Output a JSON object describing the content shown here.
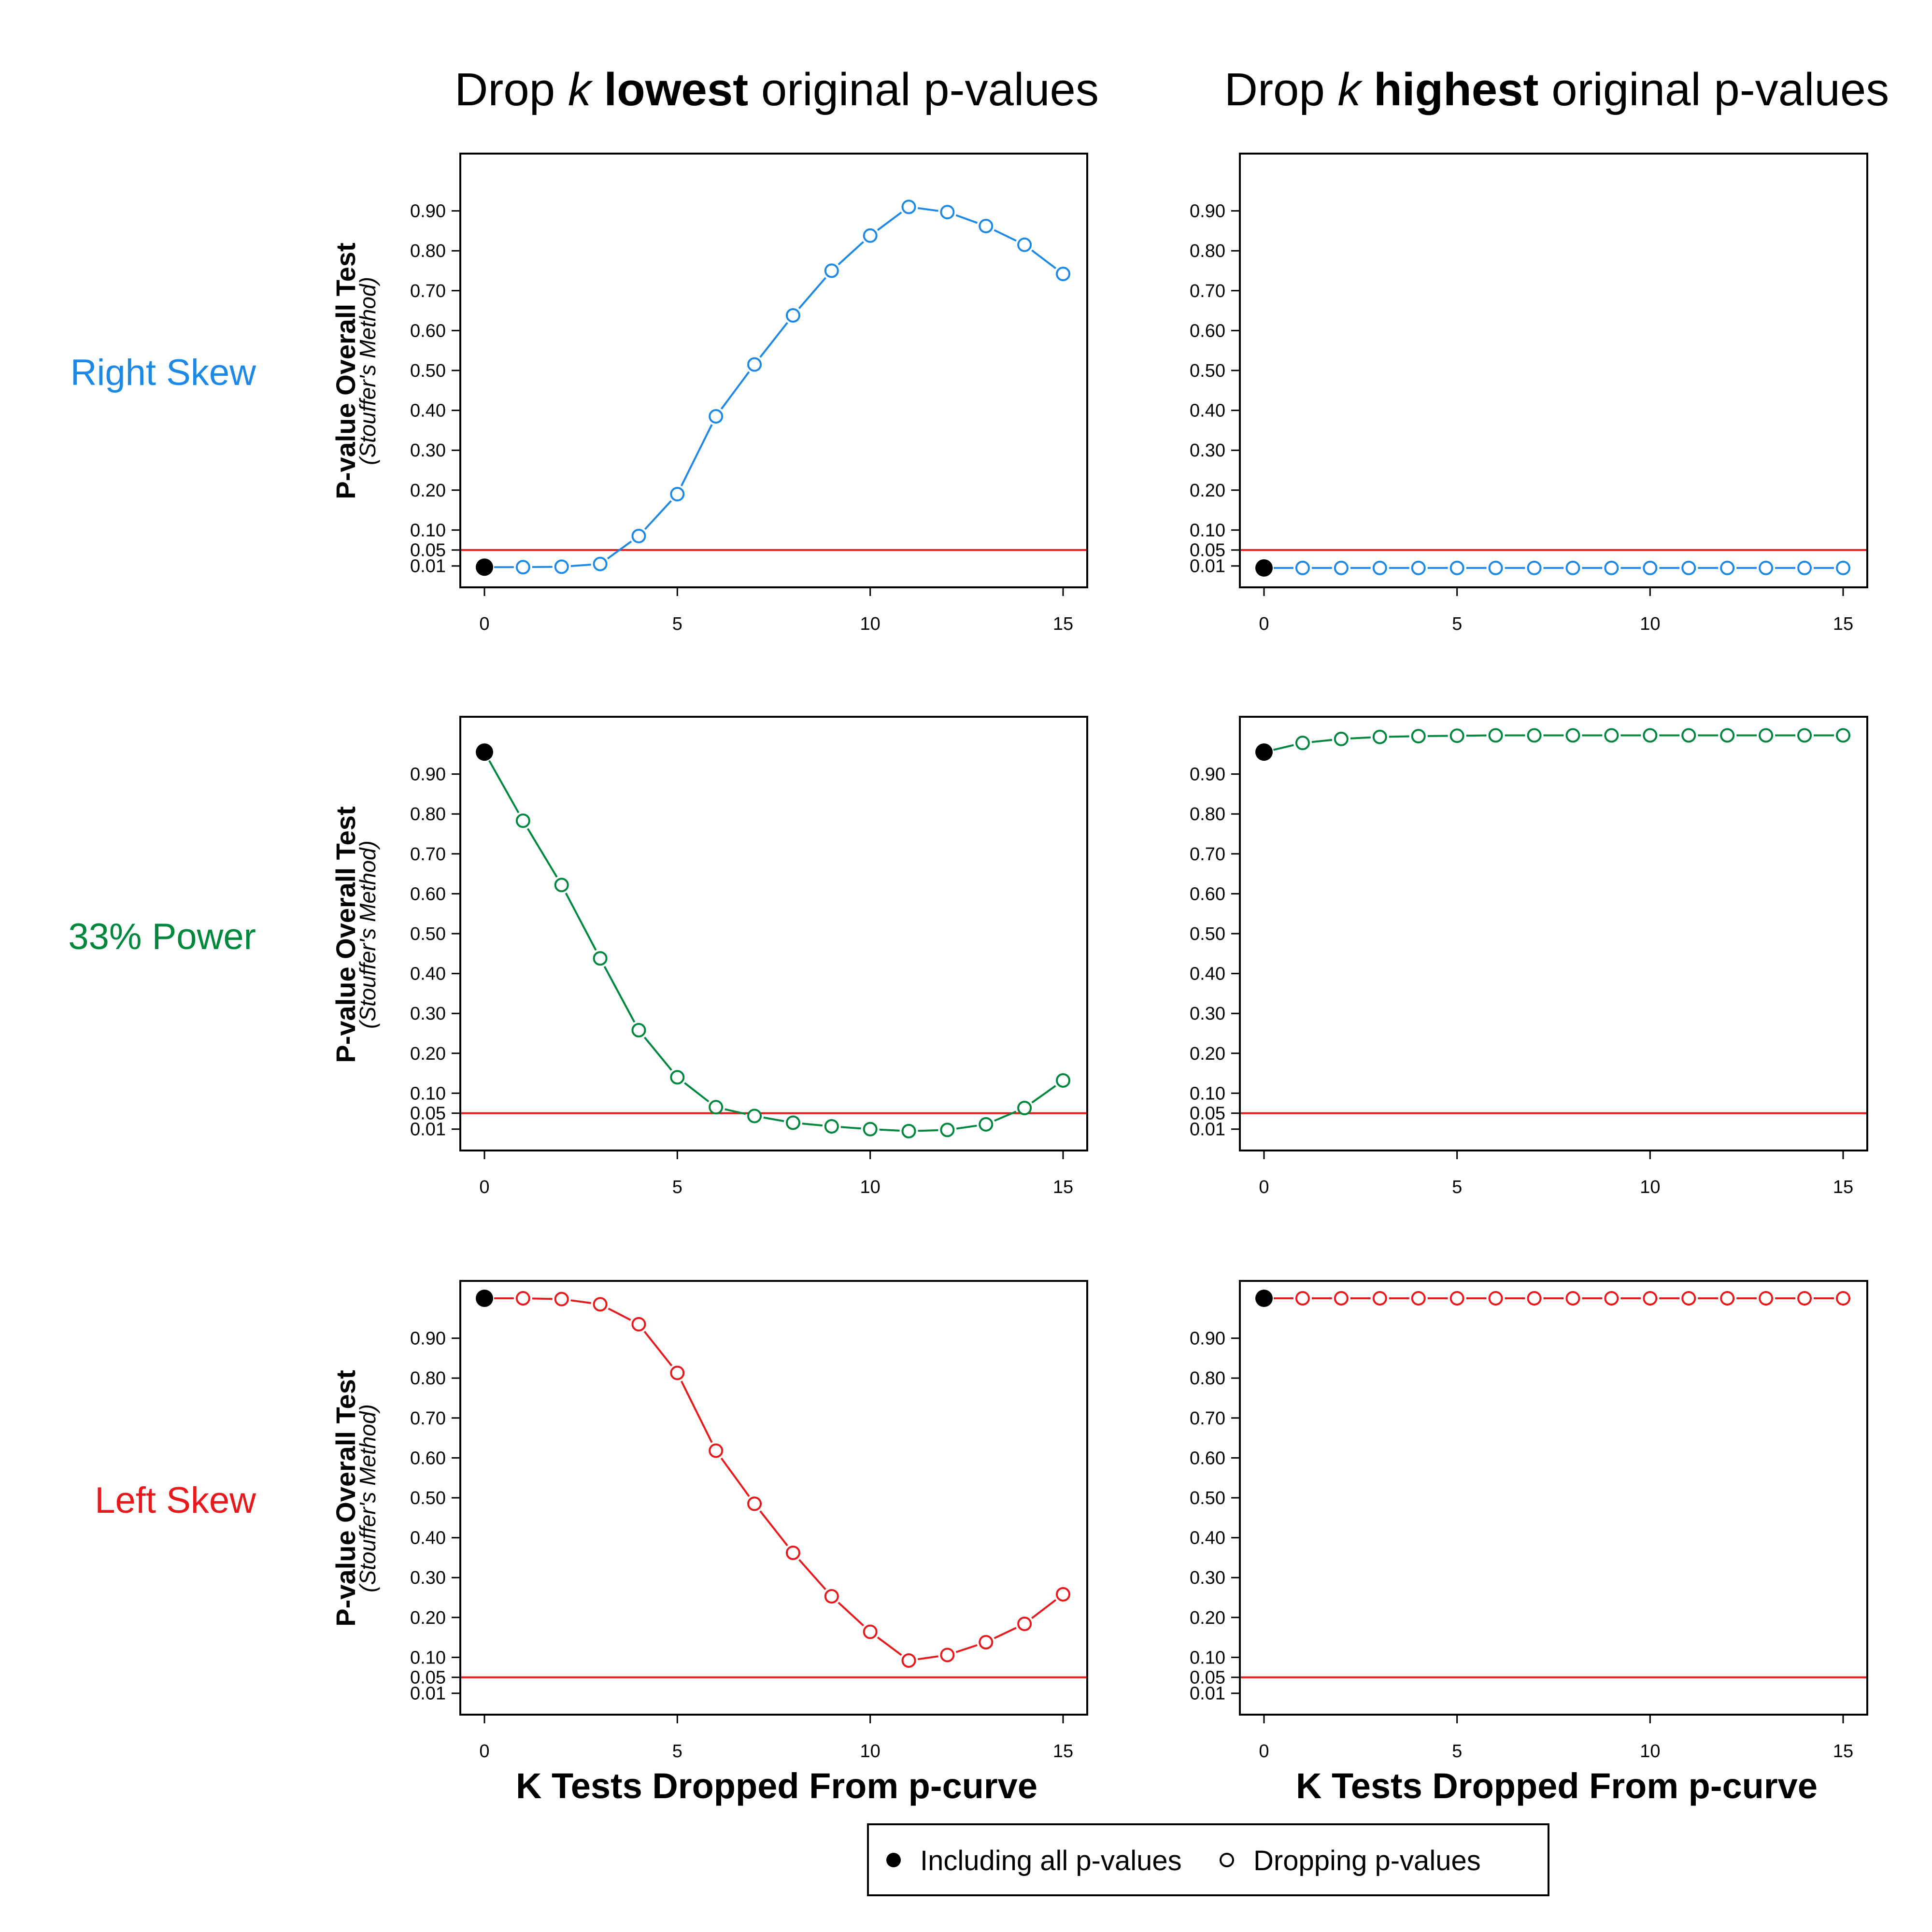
{
  "columns": [
    {
      "prefix": "Drop ",
      "k": "k",
      "bold": "lowest",
      "suffix": " original p-values"
    },
    {
      "prefix": "Drop ",
      "k": "k",
      "bold": "highest",
      "suffix": " original p-values"
    }
  ],
  "rows": [
    {
      "label": "Right Skew",
      "color": "#1E88E5"
    },
    {
      "label": "33% Power",
      "color": "#00873E"
    },
    {
      "label": "Left Skew",
      "color": "#E8191C"
    }
  ],
  "ylabel": "P-value Overall Test",
  "ylabel_sub": "(Stouffer's Method)",
  "xlabel": "K Tests Dropped From p-curve",
  "threshold": {
    "value": 0.05,
    "color": "#E8191C"
  },
  "legend": {
    "filled": "Including all p-values",
    "open": "Dropping p-values"
  },
  "chart_data": [
    {
      "type": "line",
      "row": "Right Skew",
      "column": "lowest",
      "x": [
        0,
        1,
        2,
        3,
        4,
        5,
        6,
        7,
        8,
        9,
        10,
        11,
        12,
        13,
        14,
        15
      ],
      "values": [
        0.007,
        0.007,
        0.008,
        0.015,
        0.085,
        0.19,
        0.385,
        0.515,
        0.638,
        0.75,
        0.838,
        0.91,
        0.897,
        0.862,
        0.815,
        0.742
      ],
      "xlim": [
        0,
        15
      ],
      "ylim": [
        0,
        1
      ],
      "xticks": [
        "0",
        "5",
        "10",
        "15"
      ],
      "yticks": [
        "0.01",
        "0.05",
        "0.10",
        "0.20",
        "0.30",
        "0.40",
        "0.50",
        "0.60",
        "0.70",
        "0.80",
        "0.90"
      ]
    },
    {
      "type": "line",
      "row": "Right Skew",
      "column": "highest",
      "x": [
        0,
        1,
        2,
        3,
        4,
        5,
        6,
        7,
        8,
        9,
        10,
        11,
        12,
        13,
        14,
        15
      ],
      "values": [
        0.005,
        0.005,
        0.005,
        0.005,
        0.005,
        0.005,
        0.005,
        0.005,
        0.005,
        0.005,
        0.005,
        0.005,
        0.005,
        0.005,
        0.005,
        0.005
      ],
      "xlim": [
        0,
        15
      ],
      "ylim": [
        0,
        1
      ],
      "xticks": [
        "0",
        "5",
        "10",
        "15"
      ],
      "yticks": [
        "0.01",
        "0.05",
        "0.10",
        "0.20",
        "0.30",
        "0.40",
        "0.50",
        "0.60",
        "0.70",
        "0.80",
        "0.90"
      ]
    },
    {
      "type": "line",
      "row": "33% Power",
      "column": "lowest",
      "x": [
        0,
        1,
        2,
        3,
        4,
        5,
        6,
        7,
        8,
        9,
        10,
        11,
        12,
        13,
        14,
        15
      ],
      "values": [
        0.955,
        0.783,
        0.622,
        0.438,
        0.258,
        0.14,
        0.065,
        0.043,
        0.026,
        0.017,
        0.01,
        0.005,
        0.008,
        0.022,
        0.063,
        0.132
      ],
      "xlim": [
        0,
        15
      ],
      "ylim": [
        0,
        1
      ],
      "xticks": [
        "0",
        "5",
        "10",
        "15"
      ],
      "yticks": [
        "0.01",
        "0.05",
        "0.10",
        "0.20",
        "0.30",
        "0.40",
        "0.50",
        "0.60",
        "0.70",
        "0.80",
        "0.90"
      ]
    },
    {
      "type": "line",
      "row": "33% Power",
      "column": "highest",
      "x": [
        0,
        1,
        2,
        3,
        4,
        5,
        6,
        7,
        8,
        9,
        10,
        11,
        12,
        13,
        14,
        15
      ],
      "values": [
        0.955,
        0.978,
        0.988,
        0.993,
        0.995,
        0.996,
        0.997,
        0.997,
        0.997,
        0.997,
        0.997,
        0.997,
        0.997,
        0.997,
        0.997,
        0.997
      ],
      "xlim": [
        0,
        15
      ],
      "ylim": [
        0,
        1
      ],
      "xticks": [
        "0",
        "5",
        "10",
        "15"
      ],
      "yticks": [
        "0.01",
        "0.05",
        "0.10",
        "0.20",
        "0.30",
        "0.40",
        "0.50",
        "0.60",
        "0.70",
        "0.80",
        "0.90"
      ]
    },
    {
      "type": "line",
      "row": "Left Skew",
      "column": "lowest",
      "x": [
        0,
        1,
        2,
        3,
        4,
        5,
        6,
        7,
        8,
        9,
        10,
        11,
        12,
        13,
        14,
        15
      ],
      "values": [
        1.0,
        1.0,
        0.998,
        0.985,
        0.935,
        0.813,
        0.618,
        0.485,
        0.362,
        0.253,
        0.164,
        0.092,
        0.106,
        0.138,
        0.184,
        0.258
      ],
      "xlim": [
        0,
        15
      ],
      "ylim": [
        0,
        1
      ],
      "xticks": [
        "0",
        "5",
        "10",
        "15"
      ],
      "yticks": [
        "0.01",
        "0.05",
        "0.10",
        "0.20",
        "0.30",
        "0.40",
        "0.50",
        "0.60",
        "0.70",
        "0.80",
        "0.90"
      ]
    },
    {
      "type": "line",
      "row": "Left Skew",
      "column": "highest",
      "x": [
        0,
        1,
        2,
        3,
        4,
        5,
        6,
        7,
        8,
        9,
        10,
        11,
        12,
        13,
        14,
        15
      ],
      "values": [
        1.0,
        1.0,
        1.0,
        1.0,
        1.0,
        1.0,
        1.0,
        1.0,
        1.0,
        1.0,
        1.0,
        1.0,
        1.0,
        1.0,
        1.0,
        1.0
      ],
      "xlim": [
        0,
        15
      ],
      "ylim": [
        0,
        1
      ],
      "xticks": [
        "0",
        "5",
        "10",
        "15"
      ],
      "yticks": [
        "0.01",
        "0.05",
        "0.10",
        "0.20",
        "0.30",
        "0.40",
        "0.50",
        "0.60",
        "0.70",
        "0.80",
        "0.90"
      ]
    }
  ]
}
